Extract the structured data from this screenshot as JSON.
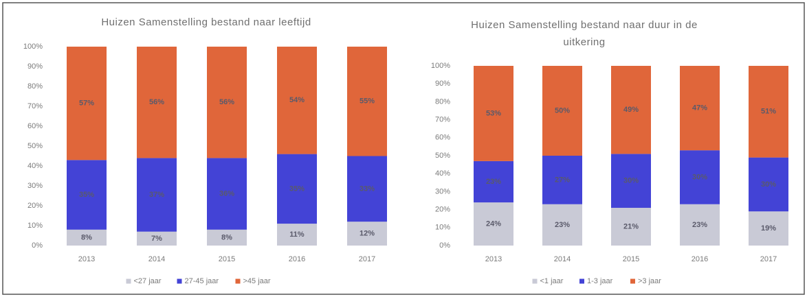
{
  "chart_data": [
    {
      "type": "bar",
      "stacked": true,
      "title": "Huizen Samenstelling bestand naar leeftijd",
      "categories": [
        "2013",
        "2014",
        "2015",
        "2016",
        "2017"
      ],
      "series": [
        {
          "name": "<27 jaar",
          "color": "#c9cad6",
          "values": [
            8,
            7,
            8,
            11,
            12
          ],
          "value_labels": [
            "8%",
            "7%",
            "8%",
            "11%",
            "12%"
          ]
        },
        {
          "name": "27-45 jaar",
          "color": "#4343d6",
          "values": [
            35,
            37,
            36,
            35,
            33
          ],
          "value_labels": [
            "35%",
            "37%",
            "36%",
            "35%",
            "33%"
          ]
        },
        {
          "name": ">45 jaar",
          "color": "#e0663a",
          "values": [
            57,
            56,
            56,
            54,
            55
          ],
          "value_labels": [
            "57%",
            "56%",
            "56%",
            "54%",
            "55%"
          ]
        }
      ],
      "ylim": [
        0,
        100
      ],
      "yticks": [
        {
          "value": 0,
          "label": "0%"
        },
        {
          "value": 10,
          "label": "10%"
        },
        {
          "value": 20,
          "label": "20%"
        },
        {
          "value": 30,
          "label": "30%"
        },
        {
          "value": 40,
          "label": "40%"
        },
        {
          "value": 50,
          "label": "50%"
        },
        {
          "value": 60,
          "label": "60%"
        },
        {
          "value": 70,
          "label": "70%"
        },
        {
          "value": 80,
          "label": "80%"
        },
        {
          "value": 90,
          "label": "90%"
        },
        {
          "value": 100,
          "label": "100%"
        }
      ],
      "legend": "bottom"
    },
    {
      "type": "bar",
      "stacked": true,
      "title": "Huizen Samenstelling bestand naar duur in de uitkering",
      "categories": [
        "2013",
        "2014",
        "2015",
        "2016",
        "2017"
      ],
      "series": [
        {
          "name": "<1 jaar",
          "color": "#c9cad6",
          "values": [
            24,
            23,
            21,
            23,
            19
          ],
          "value_labels": [
            "24%",
            "23%",
            "21%",
            "23%",
            "19%"
          ]
        },
        {
          "name": "1-3 jaar",
          "color": "#4343d6",
          "values": [
            23,
            27,
            30,
            30,
            30
          ],
          "value_labels": [
            "23%",
            "27%",
            "30%",
            "30%",
            "30%"
          ]
        },
        {
          "name": ">3 jaar",
          "color": "#e0663a",
          "values": [
            53,
            50,
            49,
            47,
            51
          ],
          "value_labels": [
            "53%",
            "50%",
            "49%",
            "47%",
            "51%"
          ]
        }
      ],
      "ylim": [
        0,
        100
      ],
      "yticks": [
        {
          "value": 0,
          "label": "0%"
        },
        {
          "value": 10,
          "label": "10%"
        },
        {
          "value": 20,
          "label": "20%"
        },
        {
          "value": 30,
          "label": "30%"
        },
        {
          "value": 40,
          "label": "40%"
        },
        {
          "value": 50,
          "label": "50%"
        },
        {
          "value": 60,
          "label": "60%"
        },
        {
          "value": 70,
          "label": "70%"
        },
        {
          "value": 80,
          "label": "80%"
        },
        {
          "value": 90,
          "label": "90%"
        },
        {
          "value": 100,
          "label": "100%"
        }
      ],
      "legend": "bottom"
    }
  ]
}
